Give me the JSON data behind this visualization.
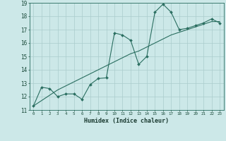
{
  "xlabel": "Humidex (Indice chaleur)",
  "background_color": "#cce8e8",
  "grid_color": "#aacccc",
  "line_color": "#2a6e60",
  "x_vals": [
    0,
    1,
    2,
    3,
    4,
    5,
    6,
    7,
    8,
    9,
    10,
    11,
    12,
    13,
    14,
    15,
    16,
    17,
    18,
    19,
    20,
    21,
    22,
    23
  ],
  "y_curve": [
    11.3,
    12.7,
    12.6,
    12.0,
    12.2,
    12.2,
    11.8,
    12.9,
    13.35,
    13.4,
    16.75,
    16.6,
    16.2,
    14.4,
    15.0,
    18.3,
    18.9,
    18.3,
    17.0,
    17.1,
    17.3,
    17.5,
    17.8,
    17.5
  ],
  "y_trend": [
    11.3,
    11.7,
    12.1,
    12.5,
    12.8,
    13.1,
    13.4,
    13.7,
    14.0,
    14.3,
    14.6,
    14.9,
    15.2,
    15.4,
    15.7,
    16.0,
    16.3,
    16.6,
    16.8,
    17.0,
    17.2,
    17.4,
    17.6,
    17.6
  ],
  "ylim": [
    11,
    19
  ],
  "xlim": [
    -0.5,
    23.5
  ],
  "yticks": [
    11,
    12,
    13,
    14,
    15,
    16,
    17,
    18,
    19
  ],
  "xticks": [
    0,
    1,
    2,
    3,
    4,
    5,
    6,
    7,
    8,
    9,
    10,
    11,
    12,
    13,
    14,
    15,
    16,
    17,
    18,
    19,
    20,
    21,
    22,
    23
  ]
}
